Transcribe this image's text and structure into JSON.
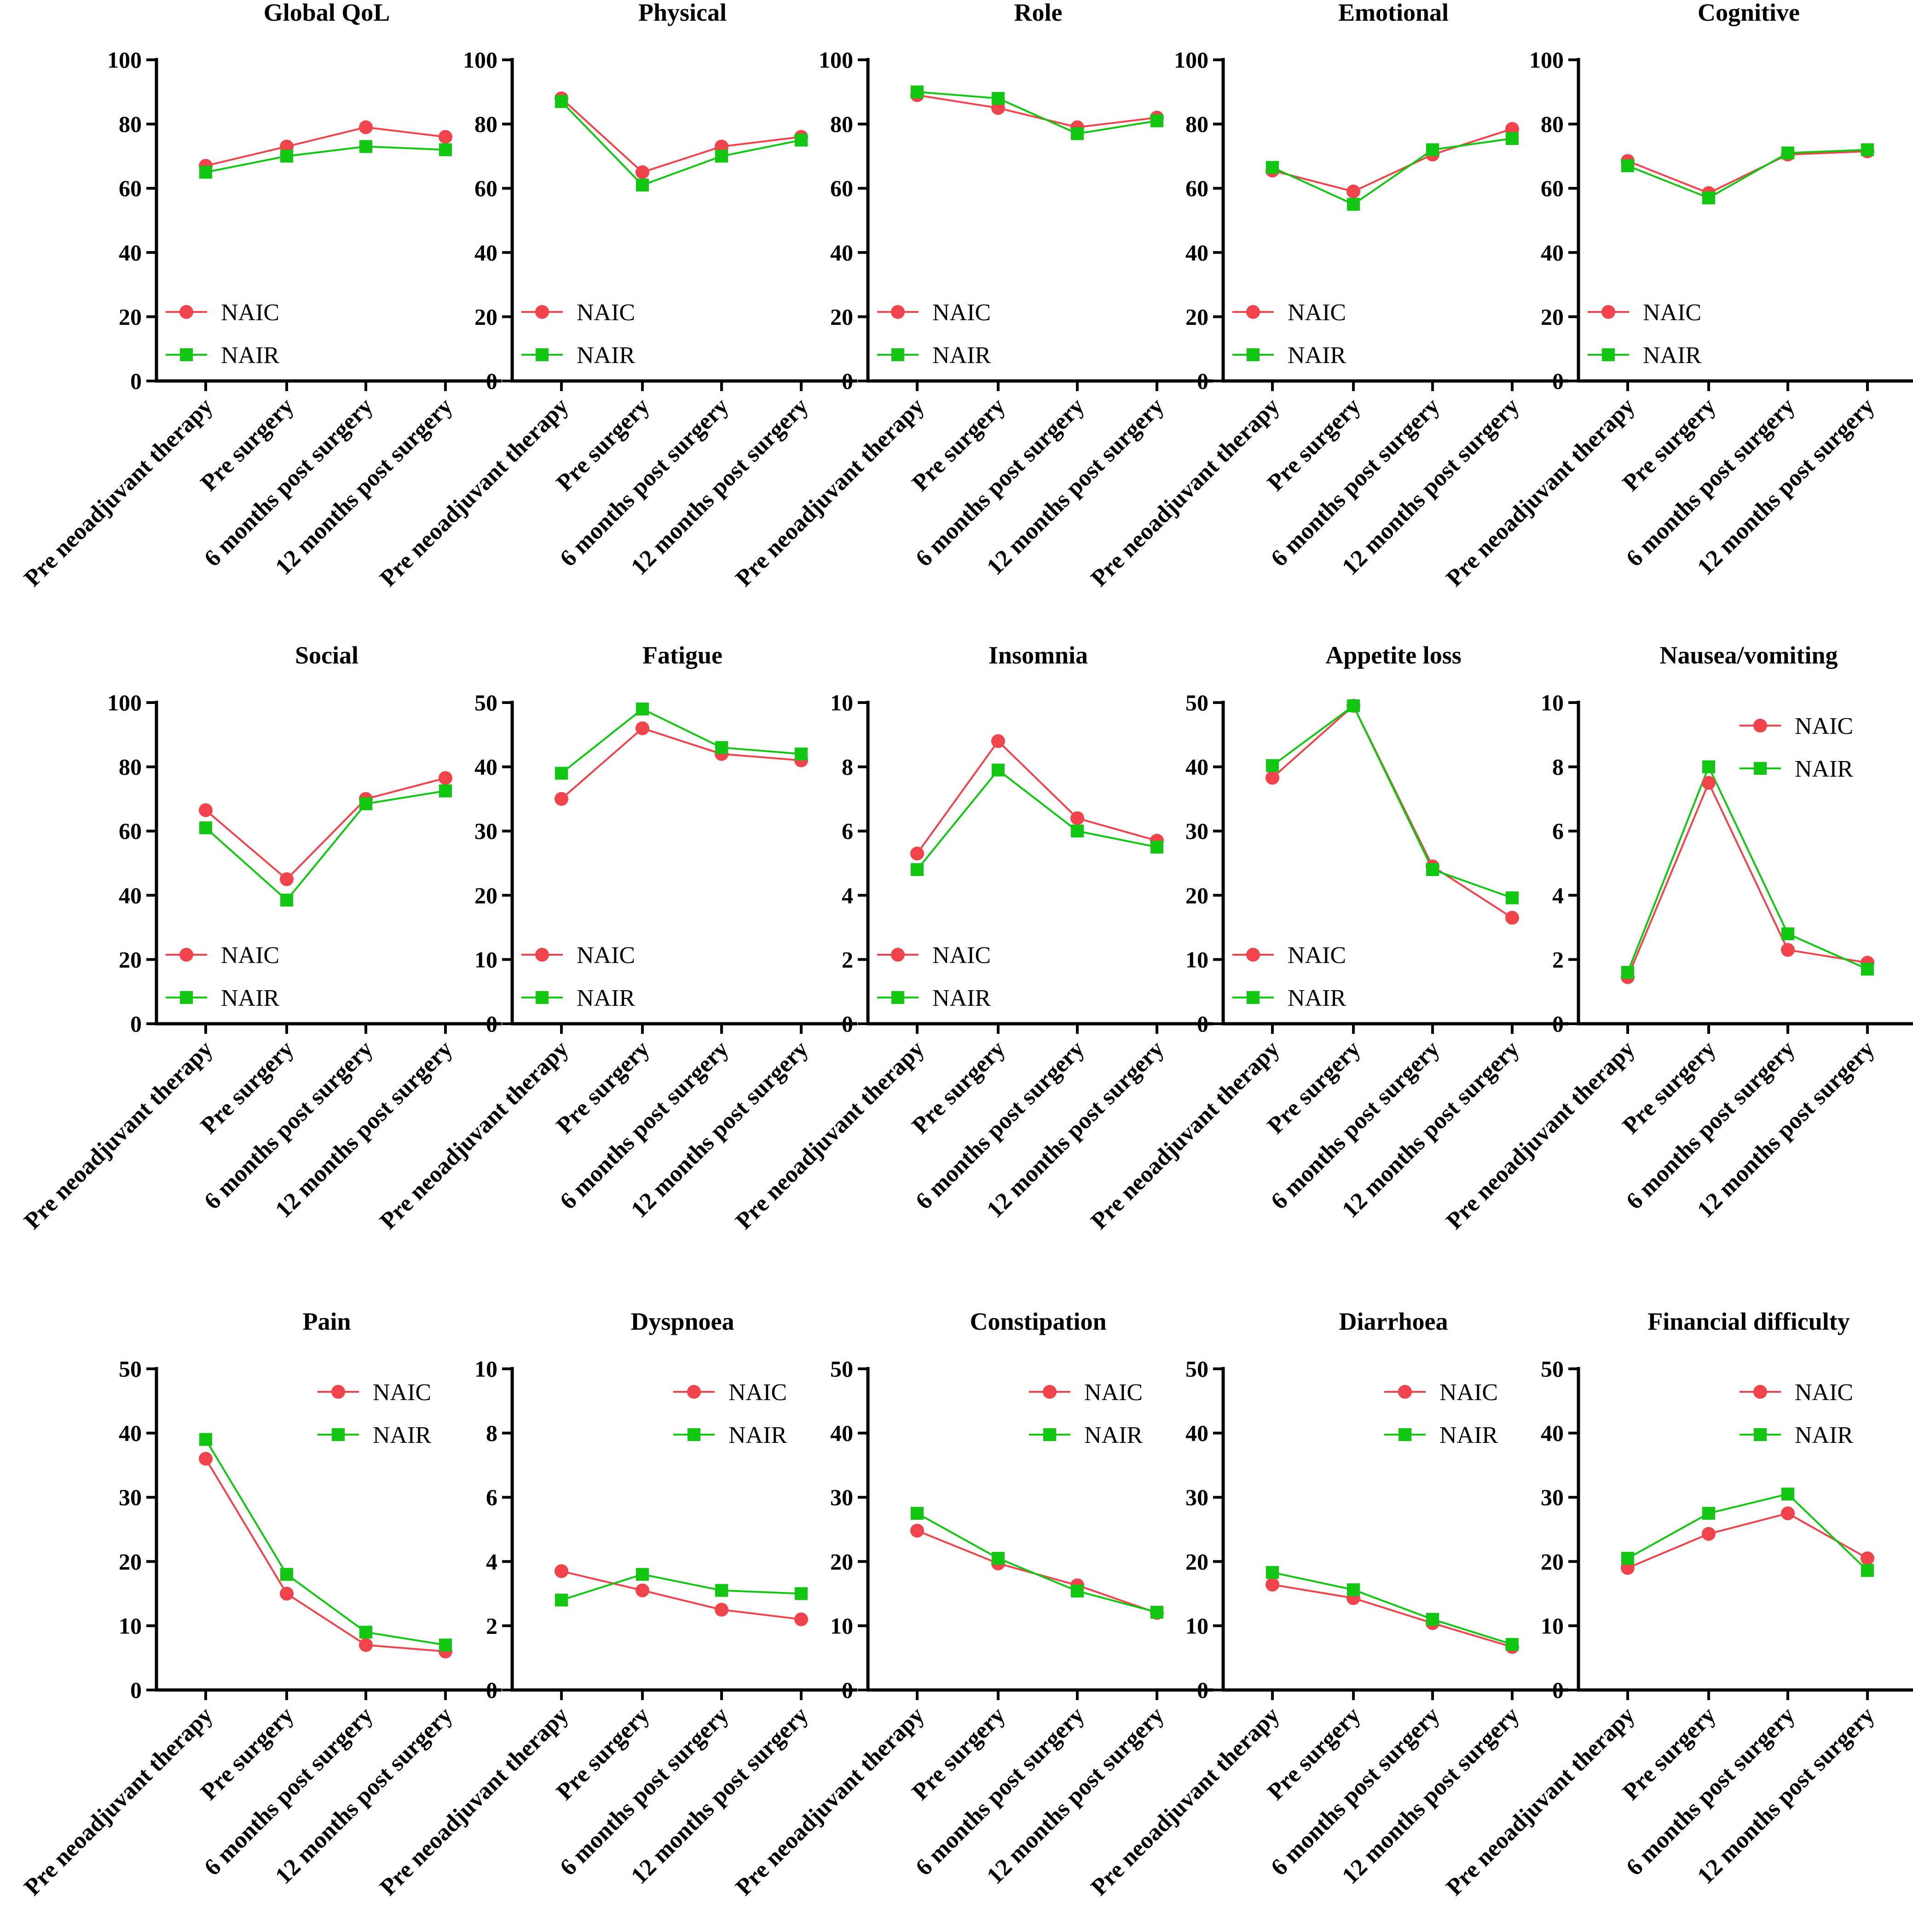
{
  "colors": {
    "NAIC": "#f0434b",
    "NAIR": "#11c711",
    "axis": "#000000"
  },
  "legend": {
    "series": [
      "NAIC",
      "NAIR"
    ]
  },
  "chart_data": [
    {
      "type": "line",
      "title": "Global QoL",
      "categories": [
        "Pre neoadjuvant therapy",
        "Pre surgery",
        "6 months post surgery",
        "12 months post surgery"
      ],
      "ylim": [
        0,
        100
      ],
      "yticks": [
        0,
        20,
        40,
        60,
        80,
        100
      ],
      "legend_position": "bottom-left",
      "series": [
        {
          "name": "NAIC",
          "values": [
            67,
            73,
            79,
            76
          ]
        },
        {
          "name": "NAIR",
          "values": [
            65,
            70,
            73,
            72
          ]
        }
      ]
    },
    {
      "type": "line",
      "title": "Physical",
      "categories": [
        "Pre neoadjuvant therapy",
        "Pre surgery",
        "6 months post surgery",
        "12 months post surgery"
      ],
      "ylim": [
        0,
        100
      ],
      "yticks": [
        0,
        20,
        40,
        60,
        80,
        100
      ],
      "legend_position": "bottom-left",
      "series": [
        {
          "name": "NAIC",
          "values": [
            88,
            65,
            73,
            76
          ]
        },
        {
          "name": "NAIR",
          "values": [
            87,
            61,
            70,
            75
          ]
        }
      ]
    },
    {
      "type": "line",
      "title": "Role",
      "categories": [
        "Pre neoadjuvant therapy",
        "Pre surgery",
        "6 months post surgery",
        "12 months post surgery"
      ],
      "ylim": [
        0,
        100
      ],
      "yticks": [
        0,
        20,
        40,
        60,
        80,
        100
      ],
      "legend_position": "bottom-left",
      "series": [
        {
          "name": "NAIC",
          "values": [
            89,
            85,
            79,
            82
          ]
        },
        {
          "name": "NAIR",
          "values": [
            90,
            88,
            77,
            81
          ]
        }
      ]
    },
    {
      "type": "line",
      "title": "Emotional",
      "categories": [
        "Pre neoadjuvant therapy",
        "Pre surgery",
        "6 months post surgery",
        "12 months post surgery"
      ],
      "ylim": [
        0,
        100
      ],
      "yticks": [
        0,
        20,
        40,
        60,
        80,
        100
      ],
      "legend_position": "bottom-left",
      "series": [
        {
          "name": "NAIC",
          "values": [
            65.5,
            59,
            70.5,
            78.5
          ]
        },
        {
          "name": "NAIR",
          "values": [
            66.5,
            55,
            72,
            75.5
          ]
        }
      ]
    },
    {
      "type": "line",
      "title": "Cognitive",
      "categories": [
        "Pre neoadjuvant therapy",
        "Pre surgery",
        "6 months post surgery",
        "12 months post surgery"
      ],
      "ylim": [
        0,
        100
      ],
      "yticks": [
        0,
        20,
        40,
        60,
        80,
        100
      ],
      "legend_position": "bottom-left",
      "series": [
        {
          "name": "NAIC",
          "values": [
            68.5,
            58.5,
            70.5,
            71.5
          ]
        },
        {
          "name": "NAIR",
          "values": [
            67,
            57,
            71,
            72
          ]
        }
      ]
    },
    {
      "type": "line",
      "title": "Social",
      "categories": [
        "Pre neoadjuvant therapy",
        "Pre surgery",
        "6 months post surgery",
        "12 months post surgery"
      ],
      "ylim": [
        0,
        100
      ],
      "yticks": [
        0,
        20,
        40,
        60,
        80,
        100
      ],
      "legend_position": "bottom-left",
      "series": [
        {
          "name": "NAIC",
          "values": [
            66.5,
            45,
            70,
            76.5
          ]
        },
        {
          "name": "NAIR",
          "values": [
            61,
            38.5,
            68.5,
            72.5
          ]
        }
      ]
    },
    {
      "type": "line",
      "title": "Fatigue",
      "categories": [
        "Pre neoadjuvant therapy",
        "Pre surgery",
        "6 months post surgery",
        "12 months post surgery"
      ],
      "ylim": [
        0,
        50
      ],
      "yticks": [
        0,
        10,
        20,
        30,
        40,
        50
      ],
      "legend_position": "bottom-left",
      "series": [
        {
          "name": "NAIC",
          "values": [
            35,
            46,
            42,
            41
          ]
        },
        {
          "name": "NAIR",
          "values": [
            39,
            49,
            43,
            42
          ]
        }
      ]
    },
    {
      "type": "line",
      "title": "Insomnia",
      "categories": [
        "Pre neoadjuvant therapy",
        "Pre surgery",
        "6 months post surgery",
        "12 months post surgery"
      ],
      "ylim": [
        0,
        10
      ],
      "yticks": [
        0,
        2,
        4,
        6,
        8,
        10
      ],
      "legend_position": "bottom-left",
      "series": [
        {
          "name": "NAIC",
          "values": [
            5.3,
            8.8,
            6.4,
            5.7
          ]
        },
        {
          "name": "NAIR",
          "values": [
            4.8,
            7.9,
            6,
            5.5
          ]
        }
      ]
    },
    {
      "type": "line",
      "title": "Appetite loss",
      "categories": [
        "Pre neoadjuvant therapy",
        "Pre surgery",
        "6 months post surgery",
        "12 months post surgery"
      ],
      "ylim": [
        0,
        50
      ],
      "yticks": [
        0,
        10,
        20,
        30,
        40,
        50
      ],
      "legend_position": "bottom-left",
      "series": [
        {
          "name": "NAIC",
          "values": [
            38.3,
            49.5,
            24.5,
            16.5
          ]
        },
        {
          "name": "NAIR",
          "values": [
            40.2,
            49.5,
            24,
            19.6
          ]
        }
      ]
    },
    {
      "type": "line",
      "title": "Nausea/vomiting",
      "categories": [
        "Pre neoadjuvant therapy",
        "Pre surgery",
        "6 months post surgery",
        "12 months post surgery"
      ],
      "ylim": [
        0,
        10
      ],
      "yticks": [
        0,
        2,
        4,
        6,
        8,
        10
      ],
      "legend_position": "top-right",
      "series": [
        {
          "name": "NAIC",
          "values": [
            1.45,
            7.5,
            2.3,
            1.9
          ]
        },
        {
          "name": "NAIR",
          "values": [
            1.6,
            8,
            2.8,
            1.7
          ]
        }
      ]
    },
    {
      "type": "line",
      "title": "Pain",
      "categories": [
        "Pre neoadjuvant therapy",
        "Pre surgery",
        "6 months post surgery",
        "12 months post surgery"
      ],
      "ylim": [
        0,
        50
      ],
      "yticks": [
        0,
        10,
        20,
        30,
        40,
        50
      ],
      "legend_position": "top-right",
      "series": [
        {
          "name": "NAIC",
          "values": [
            36,
            15,
            7,
            6
          ]
        },
        {
          "name": "NAIR",
          "values": [
            39,
            18,
            9,
            7
          ]
        }
      ]
    },
    {
      "type": "line",
      "title": "Dyspnoea",
      "categories": [
        "Pre neoadjuvant therapy",
        "Pre surgery",
        "6 months post surgery",
        "12 months post surgery"
      ],
      "ylim": [
        0,
        10
      ],
      "yticks": [
        0,
        2,
        4,
        6,
        8,
        10
      ],
      "legend_position": "top-right",
      "series": [
        {
          "name": "NAIC",
          "values": [
            3.7,
            3.1,
            2.5,
            2.2
          ]
        },
        {
          "name": "NAIR",
          "values": [
            2.8,
            3.6,
            3.1,
            3
          ]
        }
      ]
    },
    {
      "type": "line",
      "title": "Constipation",
      "categories": [
        "Pre neoadjuvant therapy",
        "Pre surgery",
        "6 months post surgery",
        "12 months post surgery"
      ],
      "ylim": [
        0,
        50
      ],
      "yticks": [
        0,
        10,
        20,
        30,
        40,
        50
      ],
      "legend_position": "top-right",
      "series": [
        {
          "name": "NAIC",
          "values": [
            24.8,
            19.7,
            16.3,
            12
          ]
        },
        {
          "name": "NAIR",
          "values": [
            27.5,
            20.5,
            15.4,
            12.1
          ]
        }
      ]
    },
    {
      "type": "line",
      "title": "Diarrhoea",
      "categories": [
        "Pre neoadjuvant therapy",
        "Pre surgery",
        "6 months post surgery",
        "12 months post surgery"
      ],
      "ylim": [
        0,
        50
      ],
      "yticks": [
        0,
        10,
        20,
        30,
        40,
        50
      ],
      "legend_position": "top-right",
      "series": [
        {
          "name": "NAIC",
          "values": [
            16.4,
            14.3,
            10.4,
            6.7
          ]
        },
        {
          "name": "NAIR",
          "values": [
            18.3,
            15.6,
            11,
            7.1
          ]
        }
      ]
    },
    {
      "type": "line",
      "title": "Financial difficulty",
      "categories": [
        "Pre neoadjuvant therapy",
        "Pre surgery",
        "6 months post surgery",
        "12 months post surgery"
      ],
      "ylim": [
        0,
        50
      ],
      "yticks": [
        0,
        10,
        20,
        30,
        40,
        50
      ],
      "legend_position": "top-right",
      "series": [
        {
          "name": "NAIC",
          "values": [
            19,
            24.3,
            27.5,
            20.5
          ]
        },
        {
          "name": "NAIR",
          "values": [
            20.5,
            27.5,
            30.5,
            18.6
          ]
        }
      ]
    }
  ]
}
